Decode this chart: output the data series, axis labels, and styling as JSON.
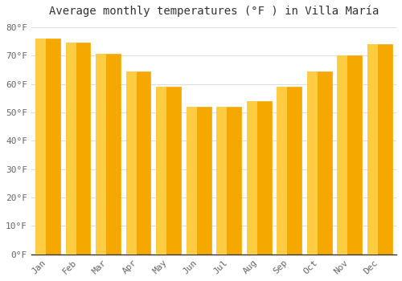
{
  "title": "Average monthly temperatures (°F ) in Villa María",
  "months": [
    "Jan",
    "Feb",
    "Mar",
    "Apr",
    "May",
    "Jun",
    "Jul",
    "Aug",
    "Sep",
    "Oct",
    "Nov",
    "Dec"
  ],
  "values": [
    76,
    74.5,
    70.5,
    64.5,
    59,
    52,
    52,
    54,
    59,
    64.5,
    70,
    74
  ],
  "bar_color_left": "#FFCC44",
  "bar_color_right": "#F5A800",
  "bar_edge_color": "#CCCCCC",
  "background_color": "#FFFFFF",
  "plot_bg_color": "#FFFFFF",
  "ylim": [
    0,
    82
  ],
  "yticks": [
    0,
    10,
    20,
    30,
    40,
    50,
    60,
    70,
    80
  ],
  "ytick_labels": [
    "0°F",
    "10°F",
    "20°F",
    "30°F",
    "40°F",
    "50°F",
    "60°F",
    "70°F",
    "80°F"
  ],
  "title_fontsize": 10,
  "tick_fontsize": 8,
  "grid_color": "#DDDDDD",
  "font_family": "monospace",
  "bar_width": 0.82
}
